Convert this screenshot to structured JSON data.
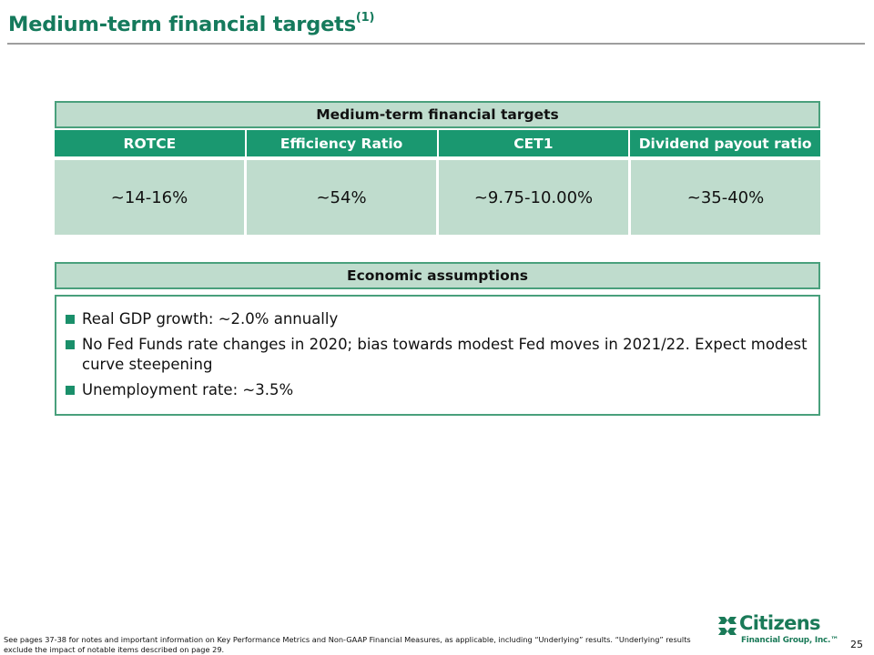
{
  "header": {
    "title": "Medium-term financial targets",
    "title_superscript": "(1)"
  },
  "targets": {
    "band_label": "Medium-term financial targets",
    "columns": [
      "ROTCE",
      "Efficiency Ratio",
      "CET1",
      "Dividend payout ratio"
    ],
    "values": [
      "~14-16%",
      "~54%",
      "~9.75-10.00%",
      "~35-40%"
    ]
  },
  "economic": {
    "band_label": "Economic assumptions",
    "bullets": [
      "Real GDP growth: ~2.0% annually",
      "No Fed Funds rate changes in 2020; bias towards modest Fed moves in 2021/22. Expect modest curve steepening",
      "Unemployment rate: ~3.5%"
    ]
  },
  "footer": {
    "footnote": "See pages 37-38 for notes and important information on Key Performance Metrics and Non-GAAP Financial Measures, as applicable, including “Underlying” results. “Underlying” results exclude the impact of notable items described on page 29.",
    "logo_name": "Citizens",
    "logo_sub": "Financial Group, Inc.™",
    "page_number": "25"
  },
  "colors": {
    "brand_green": "#157a5c",
    "header_fill": "#1a9870",
    "light_fill": "#bfdccd",
    "border": "#49a07c",
    "rule": "#9e9e9e"
  },
  "icons": {
    "logo_mark": "citizens-arrows-mark-icon",
    "bullet": "square-bullet-icon"
  }
}
